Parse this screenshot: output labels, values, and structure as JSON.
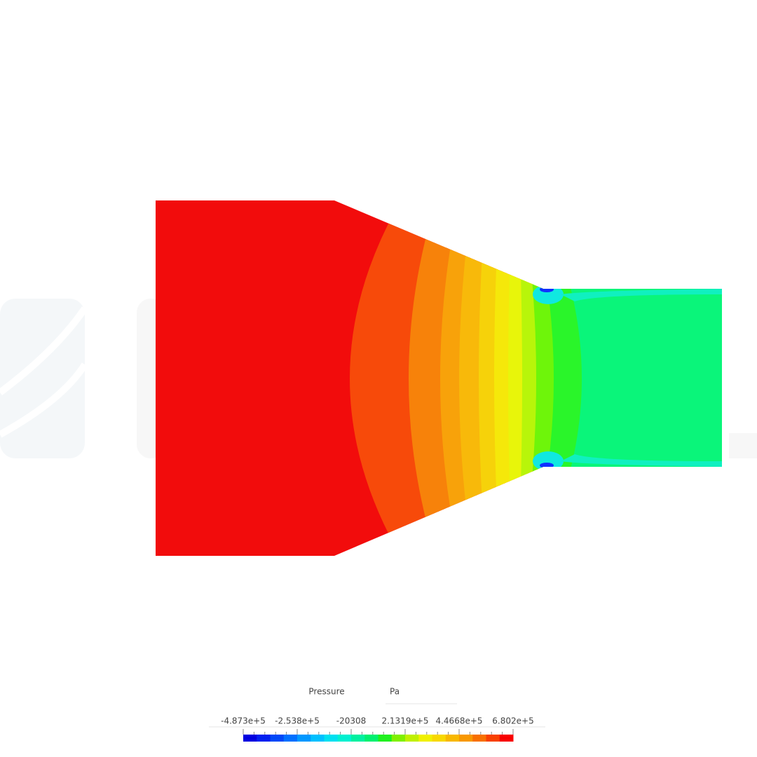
{
  "legend": {
    "title": "Pressure",
    "unit": "Pa",
    "ticks": [
      "-4.873e+5",
      "-2.538e+5",
      "-20308",
      "2.1319e+5",
      "4.4668e+5",
      "6.802e+5"
    ]
  }
}
